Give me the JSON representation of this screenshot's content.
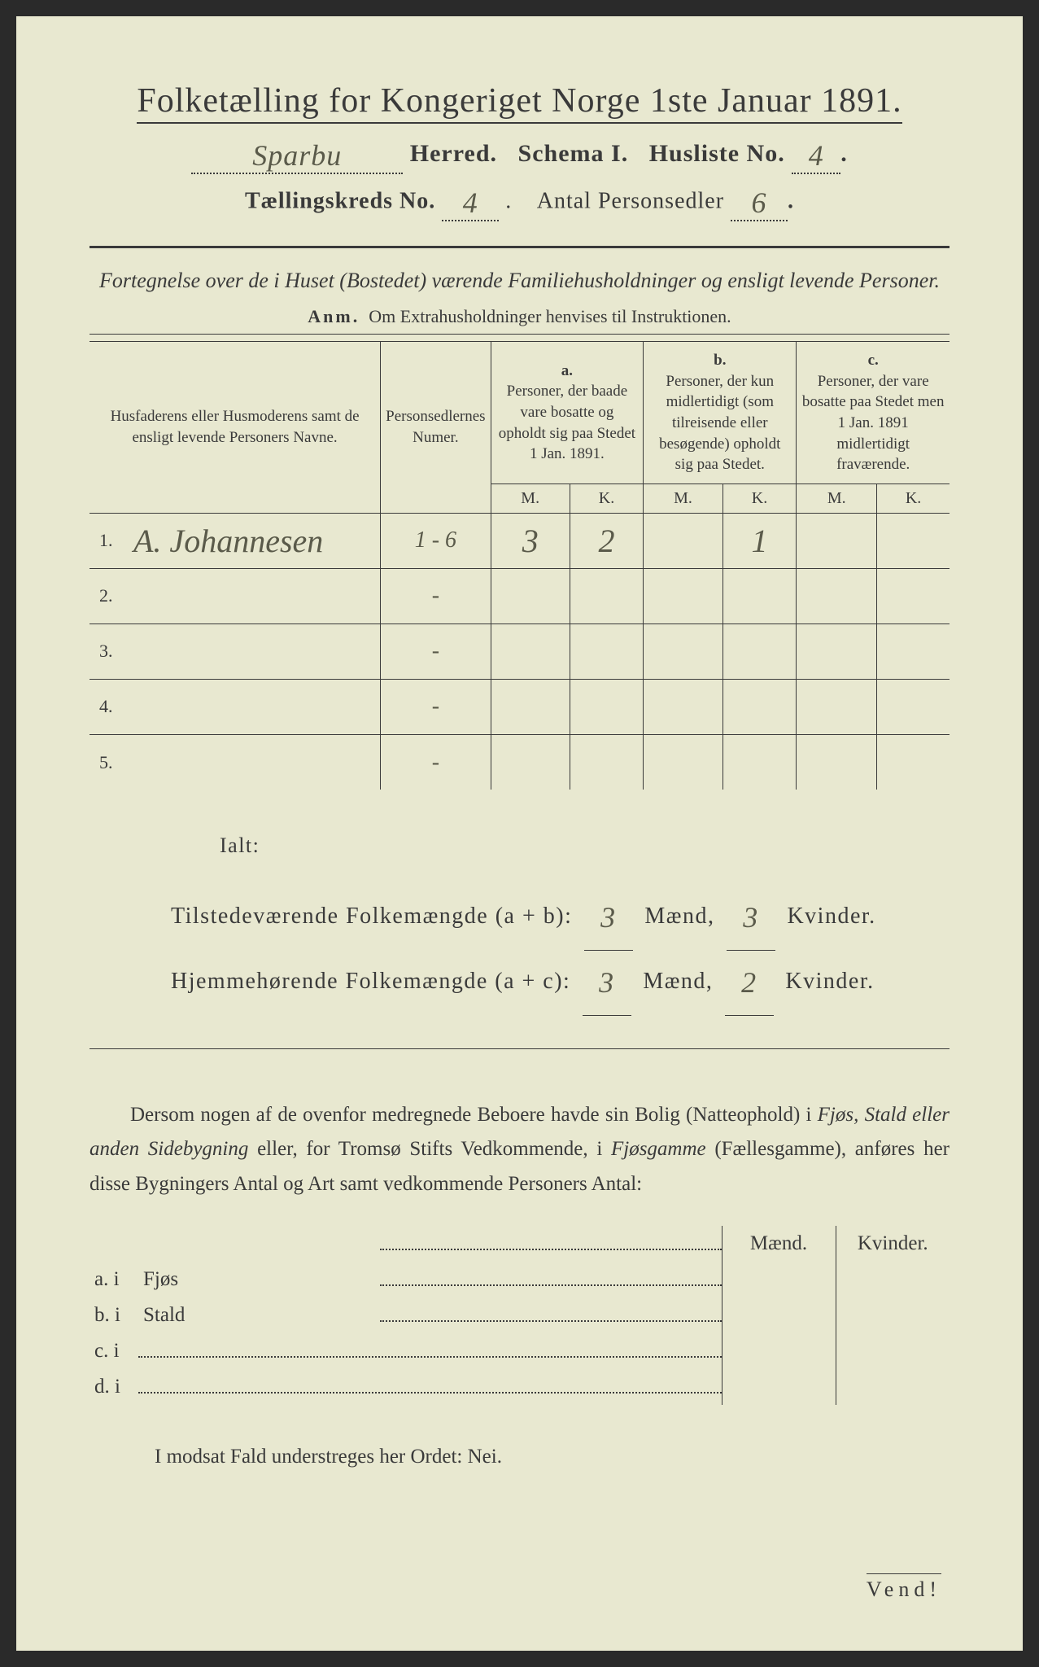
{
  "header": {
    "main_title": "Folketælling for Kongeriget Norge 1ste Januar 1891.",
    "herred_value": "Sparbu",
    "herred_label": "Herred.",
    "schema_label": "Schema I.",
    "husliste_label": "Husliste No.",
    "husliste_value": "4",
    "kreds_label": "Tællingskreds No.",
    "kreds_value": "4",
    "antal_label": "Antal Personsedler",
    "antal_value": "6"
  },
  "subtitle": "Fortegnelse over de i Huset (Bostedet) værende Familiehusholdninger og ensligt levende Personer.",
  "anm_label": "Anm.",
  "anm_text": "Om Extrahusholdninger henvises til Instruktionen.",
  "columns": {
    "col1": "Husfaderens eller Husmoderens samt de ensligt levende Personers Navne.",
    "col2": "Personsedlernes Numer.",
    "col_a_label": "a.",
    "col_a": "Personer, der baade vare bosatte og opholdt sig paa Stedet 1 Jan. 1891.",
    "col_b_label": "b.",
    "col_b": "Personer, der kun midlertidigt (som tilreisende eller besøgende) opholdt sig paa Stedet.",
    "col_c_label": "c.",
    "col_c": "Personer, der vare bosatte paa Stedet men 1 Jan. 1891 midlertidigt fraværende.",
    "m": "M.",
    "k": "K."
  },
  "rows": [
    {
      "num": "1.",
      "name": "A. Johannesen",
      "sedler": "1 - 6",
      "a_m": "3",
      "a_k": "2",
      "b_m": "",
      "b_k": "1",
      "c_m": "",
      "c_k": ""
    },
    {
      "num": "2.",
      "name": "",
      "sedler": "-",
      "a_m": "",
      "a_k": "",
      "b_m": "",
      "b_k": "",
      "c_m": "",
      "c_k": ""
    },
    {
      "num": "3.",
      "name": "",
      "sedler": "-",
      "a_m": "",
      "a_k": "",
      "b_m": "",
      "b_k": "",
      "c_m": "",
      "c_k": ""
    },
    {
      "num": "4.",
      "name": "",
      "sedler": "-",
      "a_m": "",
      "a_k": "",
      "b_m": "",
      "b_k": "",
      "c_m": "",
      "c_k": ""
    },
    {
      "num": "5.",
      "name": "",
      "sedler": "-",
      "a_m": "",
      "a_k": "",
      "b_m": "",
      "b_k": "",
      "c_m": "",
      "c_k": ""
    }
  ],
  "summary": {
    "ialt": "Ialt:",
    "line1_label": "Tilstedeværende Folkemængde (a + b):",
    "line2_label": "Hjemmehørende Folkemængde (a + c):",
    "maend": "Mænd,",
    "kvinder": "Kvinder.",
    "t_m": "3",
    "t_k": "3",
    "h_m": "3",
    "h_k": "2"
  },
  "paragraph": {
    "p1a": "Dersom nogen af de ovenfor medregnede Beboere havde sin Bolig (Natteophold) i ",
    "p1b": "Fjøs, Stald eller anden Sidebygning",
    "p1c": " eller, for Tromsø Stifts Vedkommende, i ",
    "p1d": "Fjøsgamme",
    "p1e": " (Fællesgamme), anføres her disse Bygningers Antal og Art samt vedkommende Personers Antal:"
  },
  "lower": {
    "maend": "Mænd.",
    "kvinder": "Kvinder.",
    "a": "a.  i",
    "a_label": "Fjøs",
    "b": "b.  i",
    "b_label": "Stald",
    "c": "c.  i",
    "d": "d.  i"
  },
  "modsat": "I modsat Fald understreges her Ordet: Nei.",
  "vend": "Vend!"
}
